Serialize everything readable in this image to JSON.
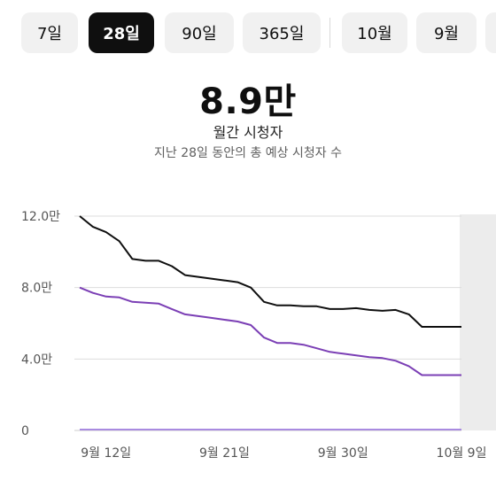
{
  "tabs": [
    {
      "label": "7일",
      "selected": false
    },
    {
      "label": "28일",
      "selected": true
    },
    {
      "label": "90일",
      "selected": false
    },
    {
      "label": "365일",
      "selected": false
    },
    {
      "label": "10월",
      "selected": false
    },
    {
      "label": "9월",
      "selected": false
    }
  ],
  "summary": {
    "value": "8.9만",
    "label": "월간 시청자",
    "description": "지난 28일 동안의 총 예상 시청자 수"
  },
  "colors": {
    "series_total": "#0f0f0f",
    "series_purple": "#7b3fb5",
    "series_light": "#a98be0",
    "highlight_band": "#ececec",
    "grid": "#dddddd"
  },
  "chart_data": {
    "type": "line",
    "x": [
      "9월 10일",
      "9월 11일",
      "9월 12일",
      "9월 13일",
      "9월 14일",
      "9월 15일",
      "9월 16일",
      "9월 17일",
      "9월 18일",
      "9월 19일",
      "9월 20일",
      "9월 21일",
      "9월 22일",
      "9월 23일",
      "9월 24일",
      "9월 25일",
      "9월 26일",
      "9월 27일",
      "9월 28일",
      "9월 29일",
      "9월 30일",
      "10월 1일",
      "10월 2일",
      "10월 3일",
      "10월 4일",
      "10월 5일",
      "10월 6일",
      "10월 7일",
      "10월 8일",
      "10월 9일"
    ],
    "x_tick_labels": [
      "9월 12일",
      "9월 21일",
      "9월 30일",
      "10월 9일"
    ],
    "y_tick_labels": [
      "0",
      "4.0만",
      "8.0만",
      "12.0만"
    ],
    "y_ticks": [
      0,
      40000,
      80000,
      120000
    ],
    "ylim": [
      0,
      120000
    ],
    "grid": true,
    "highlighted_x": "10월 9일",
    "series": [
      {
        "values": [
          120000,
          114000,
          111000,
          106000,
          96000,
          95000,
          95000,
          92000,
          87000,
          86000,
          85000,
          84000,
          83000,
          80000,
          72000,
          70000,
          70000,
          69500,
          69500,
          68000,
          68000,
          68500,
          67500,
          67000,
          67500,
          65000,
          58000,
          58000,
          58000,
          58000
        ]
      },
      {
        "values": [
          80000,
          77000,
          75000,
          74500,
          72000,
          71500,
          71000,
          68000,
          65000,
          64000,
          63000,
          62000,
          61000,
          59000,
          52000,
          49000,
          49000,
          48000,
          46000,
          44000,
          43000,
          42000,
          41000,
          40500,
          39000,
          36000,
          31000,
          31000,
          31000,
          31000
        ]
      },
      {
        "values": [
          500,
          500,
          500,
          500,
          500,
          500,
          500,
          500,
          500,
          500,
          500,
          500,
          500,
          500,
          500,
          500,
          500,
          500,
          500,
          500,
          500,
          500,
          500,
          500,
          500,
          500,
          500,
          500,
          500,
          500
        ]
      }
    ]
  }
}
